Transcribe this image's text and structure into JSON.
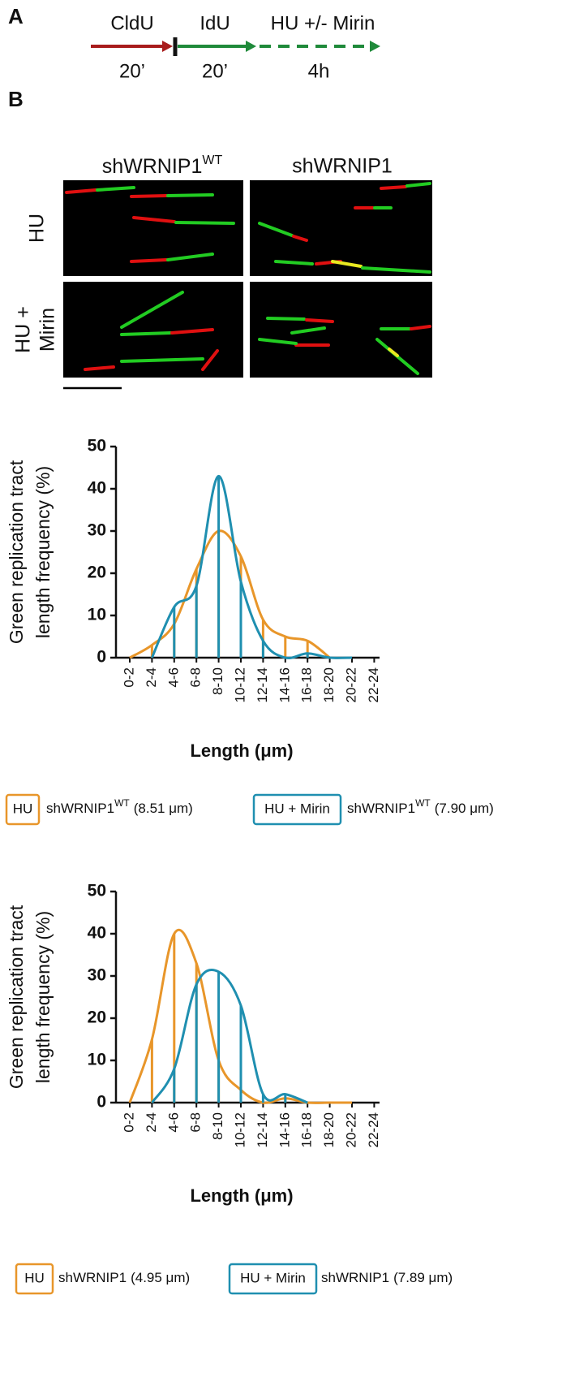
{
  "panel_a": {
    "label": "A",
    "steps": [
      {
        "name": "CldU",
        "duration": "20’"
      },
      {
        "name": "IdU",
        "duration": "20’"
      },
      {
        "name": "HU +/- Mirin",
        "duration": "4h"
      }
    ]
  },
  "panel_b": {
    "label": "B",
    "columns": [
      {
        "name": "shWRNIP1",
        "sup": "WT"
      },
      {
        "name": "shWRNIP1"
      }
    ],
    "rows": [
      [
        "HU"
      ],
      [
        "HU +",
        "Mirin"
      ]
    ]
  },
  "chart_data": [
    {
      "type": "line",
      "y_label": [
        "Green replication tract",
        "length frequency (%)"
      ],
      "x_label": "Length (μm)",
      "categories": [
        "0-2",
        "2-4",
        "4-6",
        "6-8",
        "8-10",
        "10-12",
        "12-14",
        "14-16",
        "16-18",
        "18-20",
        "20-22",
        "22-24"
      ],
      "ylim": [
        0,
        50
      ],
      "yticks": [
        0,
        10,
        20,
        30,
        40,
        50
      ],
      "series": [
        {
          "name": "HU",
          "color": "#e8962a",
          "values": [
            0,
            3,
            8,
            21,
            30,
            24,
            9,
            5,
            4,
            0,
            null,
            null
          ],
          "legend_text": {
            "main": "shWRNIP1",
            "sup": "WT",
            "value": "(8.51 μm)"
          }
        },
        {
          "name": "HU + Mirin",
          "color": "#1f8fb0",
          "values": [
            null,
            0,
            12,
            17,
            43,
            18,
            4,
            0,
            1,
            0,
            0,
            null
          ],
          "legend_text": {
            "main": "shWRNIP1",
            "sup": "WT",
            "value": "(7.90 μm)"
          }
        }
      ]
    },
    {
      "type": "line",
      "y_label": [
        "Green replication tract",
        "length frequency (%)"
      ],
      "x_label": "Length (μm)",
      "categories": [
        "0-2",
        "2-4",
        "4-6",
        "6-8",
        "8-10",
        "10-12",
        "12-14",
        "14-16",
        "16-18",
        "18-20",
        "20-22",
        "22-24"
      ],
      "ylim": [
        0,
        50
      ],
      "yticks": [
        0,
        10,
        20,
        30,
        40,
        50
      ],
      "series": [
        {
          "name": "HU",
          "color": "#e8962a",
          "values": [
            0,
            15,
            40,
            33,
            10,
            3,
            0,
            1,
            0,
            0,
            0,
            null
          ],
          "legend_text": {
            "main": "shWRNIP1",
            "value": "(4.95 μm)"
          }
        },
        {
          "name": "HU + Mirin",
          "color": "#1f8fb0",
          "values": [
            null,
            0,
            8,
            28,
            31,
            23,
            2,
            2,
            0,
            null,
            null,
            null
          ],
          "legend_text": {
            "main": "shWRNIP1",
            "value": "(7.89 μm)"
          }
        }
      ]
    }
  ]
}
